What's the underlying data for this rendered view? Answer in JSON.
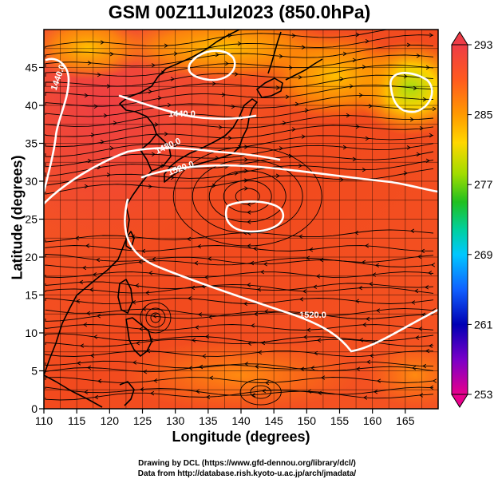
{
  "title": "GSM 00Z11Jul2023 (850.0hPa)",
  "x_axis": {
    "label": "Longitude (degrees)",
    "min": 110,
    "max": 170,
    "ticks": [
      "110",
      "115",
      "120",
      "125",
      "130",
      "135",
      "140",
      "145",
      "150",
      "155",
      "160",
      "165"
    ]
  },
  "y_axis": {
    "label": "Latitude  (degrees)",
    "min": 0,
    "max": 50,
    "ticks": [
      "0",
      "5",
      "10",
      "15",
      "20",
      "25",
      "30",
      "35",
      "40",
      "45"
    ]
  },
  "colorbar": {
    "min": 253,
    "max": 293,
    "labels": [
      "293",
      "285",
      "277",
      "269",
      "261",
      "253"
    ],
    "colors": [
      "#e8008c",
      "#7a00c8",
      "#0000b4",
      "#1060ff",
      "#00c8ff",
      "#00d0a0",
      "#20c020",
      "#a0dc00",
      "#ffd700",
      "#ff9a00",
      "#ff5a1e",
      "#ee3c46"
    ]
  },
  "contours": [
    {
      "label": "1440.0"
    },
    {
      "label": "1440.0"
    },
    {
      "label": "1480.0"
    },
    {
      "label": "1520.0"
    },
    {
      "label": "1520.0"
    }
  ],
  "credits": {
    "line1": "Drawing by DCL (https://www.gfd-dennou.org/library/dcl/)",
    "line2": "Data from http://database.rish.kyoto-u.ac.jp/arch/jmadata/"
  }
}
